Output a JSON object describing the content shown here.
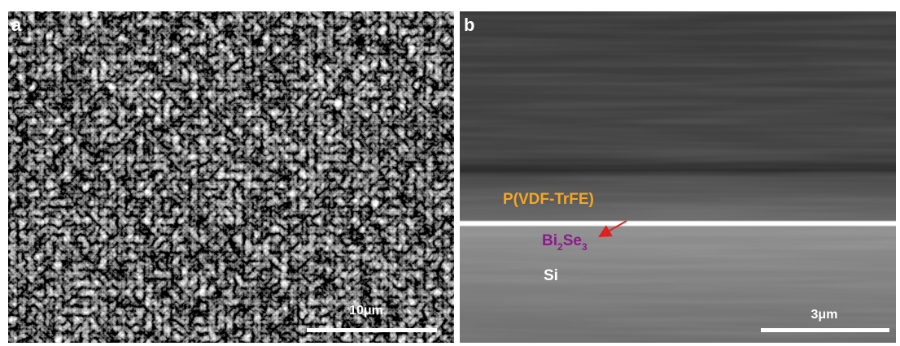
{
  "panel_a": {
    "label": "a",
    "scale_bar": "10μm"
  },
  "panel_b": {
    "label": "b",
    "scale_bar": "3μm",
    "layers": {
      "polymer": "P(VDF-TrFE)",
      "film": [
        "Bi",
        "2",
        "Se",
        "3"
      ],
      "substrate": "Si"
    }
  }
}
